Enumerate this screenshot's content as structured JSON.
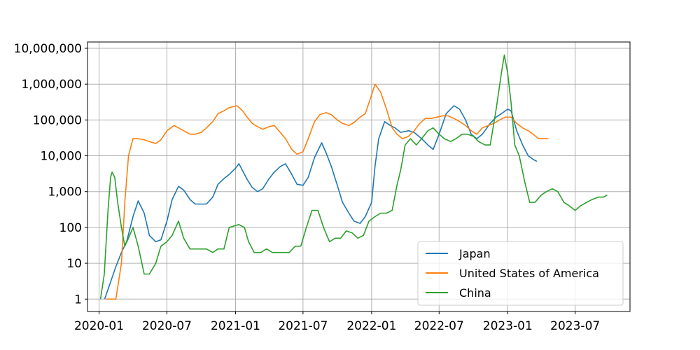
{
  "chart_data": {
    "type": "line",
    "title": "",
    "xlabel": "",
    "ylabel": "",
    "y_scale": "log",
    "ylim": [
      0.45,
      15000000
    ],
    "xlim": [
      "2019-12-01",
      "2023-11-25"
    ],
    "grid": true,
    "legend_position": "bottom-right",
    "x_ticks": [
      "2020-01",
      "2020-07",
      "2021-01",
      "2021-07",
      "2022-01",
      "2022-07",
      "2023-01",
      "2023-07"
    ],
    "y_ticks": [
      {
        "value": 1,
        "label": "1"
      },
      {
        "value": 10,
        "label": "10"
      },
      {
        "value": 100,
        "label": "100"
      },
      {
        "value": 1000,
        "label": "1,000"
      },
      {
        "value": 10000,
        "label": "10,000"
      },
      {
        "value": 100000,
        "label": "100,000"
      },
      {
        "value": 1000000,
        "label": "1,000,000"
      },
      {
        "value": 10000000,
        "label": "10,000,000"
      }
    ],
    "series": [
      {
        "name": "Japan",
        "color": "#1f77b4",
        "points": [
          [
            "2020-01-16",
            1
          ],
          [
            "2020-02-01",
            3
          ],
          [
            "2020-02-15",
            8
          ],
          [
            "2020-03-01",
            20
          ],
          [
            "2020-03-15",
            40
          ],
          [
            "2020-04-01",
            200
          ],
          [
            "2020-04-15",
            550
          ],
          [
            "2020-05-01",
            250
          ],
          [
            "2020-05-15",
            60
          ],
          [
            "2020-06-01",
            40
          ],
          [
            "2020-06-15",
            45
          ],
          [
            "2020-07-01",
            150
          ],
          [
            "2020-07-15",
            600
          ],
          [
            "2020-08-01",
            1400
          ],
          [
            "2020-08-15",
            1100
          ],
          [
            "2020-09-01",
            600
          ],
          [
            "2020-09-15",
            450
          ],
          [
            "2020-10-01",
            450
          ],
          [
            "2020-10-15",
            450
          ],
          [
            "2020-11-01",
            700
          ],
          [
            "2020-11-15",
            1600
          ],
          [
            "2020-12-01",
            2300
          ],
          [
            "2020-12-15",
            3000
          ],
          [
            "2021-01-01",
            4500
          ],
          [
            "2021-01-10",
            6000
          ],
          [
            "2021-02-01",
            2200
          ],
          [
            "2021-02-15",
            1300
          ],
          [
            "2021-03-01",
            1000
          ],
          [
            "2021-03-15",
            1200
          ],
          [
            "2021-04-01",
            2300
          ],
          [
            "2021-04-15",
            3500
          ],
          [
            "2021-05-01",
            5000
          ],
          [
            "2021-05-15",
            6000
          ],
          [
            "2021-06-01",
            3000
          ],
          [
            "2021-06-15",
            1600
          ],
          [
            "2021-07-01",
            1500
          ],
          [
            "2021-07-15",
            2500
          ],
          [
            "2021-08-01",
            9000
          ],
          [
            "2021-08-20",
            23000
          ],
          [
            "2021-09-01",
            12000
          ],
          [
            "2021-09-15",
            5000
          ],
          [
            "2021-10-01",
            1500
          ],
          [
            "2021-10-15",
            500
          ],
          [
            "2021-11-01",
            250
          ],
          [
            "2021-11-15",
            150
          ],
          [
            "2021-12-01",
            130
          ],
          [
            "2021-12-15",
            200
          ],
          [
            "2022-01-01",
            500
          ],
          [
            "2022-01-10",
            5000
          ],
          [
            "2022-01-20",
            30000
          ],
          [
            "2022-02-05",
            90000
          ],
          [
            "2022-02-20",
            70000
          ],
          [
            "2022-03-05",
            60000
          ],
          [
            "2022-03-20",
            45000
          ],
          [
            "2022-04-10",
            50000
          ],
          [
            "2022-04-25",
            45000
          ],
          [
            "2022-05-15",
            30000
          ],
          [
            "2022-06-01",
            20000
          ],
          [
            "2022-06-15",
            15000
          ],
          [
            "2022-07-01",
            40000
          ],
          [
            "2022-07-20",
            150000
          ],
          [
            "2022-08-10",
            250000
          ],
          [
            "2022-08-25",
            200000
          ],
          [
            "2022-09-10",
            100000
          ],
          [
            "2022-09-25",
            40000
          ],
          [
            "2022-10-10",
            30000
          ],
          [
            "2022-10-25",
            40000
          ],
          [
            "2022-11-15",
            80000
          ],
          [
            "2022-12-01",
            120000
          ],
          [
            "2022-12-15",
            150000
          ],
          [
            "2023-01-01",
            200000
          ],
          [
            "2023-01-10",
            180000
          ],
          [
            "2023-01-25",
            50000
          ],
          [
            "2023-02-10",
            20000
          ],
          [
            "2023-02-25",
            10000
          ],
          [
            "2023-03-10",
            8000
          ],
          [
            "2023-03-20",
            7000
          ]
        ]
      },
      {
        "name": "United States of America",
        "color": "#ff7f0e",
        "points": [
          [
            "2020-01-20",
            1
          ],
          [
            "2020-02-01",
            1
          ],
          [
            "2020-02-15",
            1
          ],
          [
            "2020-03-01",
            10
          ],
          [
            "2020-03-10",
            500
          ],
          [
            "2020-03-20",
            10000
          ],
          [
            "2020-04-01",
            30000
          ],
          [
            "2020-04-15",
            30000
          ],
          [
            "2020-05-01",
            28000
          ],
          [
            "2020-05-15",
            25000
          ],
          [
            "2020-06-01",
            22000
          ],
          [
            "2020-06-15",
            28000
          ],
          [
            "2020-07-01",
            50000
          ],
          [
            "2020-07-20",
            70000
          ],
          [
            "2020-08-01",
            60000
          ],
          [
            "2020-08-15",
            50000
          ],
          [
            "2020-09-01",
            40000
          ],
          [
            "2020-09-15",
            40000
          ],
          [
            "2020-10-01",
            45000
          ],
          [
            "2020-10-15",
            60000
          ],
          [
            "2020-11-01",
            90000
          ],
          [
            "2020-11-15",
            150000
          ],
          [
            "2020-12-01",
            180000
          ],
          [
            "2020-12-15",
            220000
          ],
          [
            "2021-01-05",
            250000
          ],
          [
            "2021-01-20",
            180000
          ],
          [
            "2021-02-01",
            120000
          ],
          [
            "2021-02-15",
            80000
          ],
          [
            "2021-03-01",
            65000
          ],
          [
            "2021-03-15",
            55000
          ],
          [
            "2021-04-01",
            65000
          ],
          [
            "2021-04-15",
            70000
          ],
          [
            "2021-05-01",
            45000
          ],
          [
            "2021-05-15",
            30000
          ],
          [
            "2021-06-01",
            15000
          ],
          [
            "2021-06-15",
            11000
          ],
          [
            "2021-07-01",
            13000
          ],
          [
            "2021-07-15",
            30000
          ],
          [
            "2021-08-01",
            90000
          ],
          [
            "2021-08-15",
            140000
          ],
          [
            "2021-09-01",
            160000
          ],
          [
            "2021-09-15",
            140000
          ],
          [
            "2021-10-01",
            100000
          ],
          [
            "2021-10-15",
            80000
          ],
          [
            "2021-11-01",
            70000
          ],
          [
            "2021-11-15",
            85000
          ],
          [
            "2021-12-01",
            120000
          ],
          [
            "2021-12-15",
            150000
          ],
          [
            "2022-01-01",
            500000
          ],
          [
            "2022-01-10",
            1000000
          ],
          [
            "2022-01-25",
            600000
          ],
          [
            "2022-02-10",
            200000
          ],
          [
            "2022-02-25",
            60000
          ],
          [
            "2022-03-10",
            40000
          ],
          [
            "2022-03-25",
            30000
          ],
          [
            "2022-04-10",
            35000
          ],
          [
            "2022-04-25",
            50000
          ],
          [
            "2022-05-10",
            80000
          ],
          [
            "2022-05-25",
            110000
          ],
          [
            "2022-06-10",
            110000
          ],
          [
            "2022-06-25",
            120000
          ],
          [
            "2022-07-10",
            130000
          ],
          [
            "2022-07-25",
            130000
          ],
          [
            "2022-08-10",
            110000
          ],
          [
            "2022-08-25",
            90000
          ],
          [
            "2022-09-10",
            70000
          ],
          [
            "2022-09-25",
            50000
          ],
          [
            "2022-10-10",
            40000
          ],
          [
            "2022-10-25",
            60000
          ],
          [
            "2022-11-10",
            70000
          ],
          [
            "2022-11-25",
            80000
          ],
          [
            "2022-12-10",
            100000
          ],
          [
            "2022-12-25",
            120000
          ],
          [
            "2023-01-10",
            120000
          ],
          [
            "2023-01-25",
            80000
          ],
          [
            "2023-02-10",
            60000
          ],
          [
            "2023-02-25",
            50000
          ],
          [
            "2023-03-10",
            40000
          ],
          [
            "2023-03-25",
            30000
          ],
          [
            "2023-04-10",
            30000
          ],
          [
            "2023-04-20",
            30000
          ]
        ]
      },
      {
        "name": "China",
        "color": "#2ca02c",
        "points": [
          [
            "2020-01-05",
            1
          ],
          [
            "2020-01-15",
            5
          ],
          [
            "2020-01-25",
            300
          ],
          [
            "2020-02-01",
            2500
          ],
          [
            "2020-02-05",
            3500
          ],
          [
            "2020-02-12",
            2500
          ],
          [
            "2020-02-20",
            500
          ],
          [
            "2020-03-01",
            100
          ],
          [
            "2020-03-10",
            30
          ],
          [
            "2020-03-20",
            50
          ],
          [
            "2020-04-01",
            100
          ],
          [
            "2020-04-15",
            30
          ],
          [
            "2020-05-01",
            5
          ],
          [
            "2020-05-15",
            5
          ],
          [
            "2020-06-01",
            10
          ],
          [
            "2020-06-15",
            30
          ],
          [
            "2020-07-01",
            40
          ],
          [
            "2020-07-15",
            60
          ],
          [
            "2020-08-01",
            150
          ],
          [
            "2020-08-15",
            50
          ],
          [
            "2020-09-01",
            25
          ],
          [
            "2020-09-15",
            25
          ],
          [
            "2020-10-01",
            25
          ],
          [
            "2020-10-15",
            25
          ],
          [
            "2020-11-01",
            20
          ],
          [
            "2020-11-15",
            25
          ],
          [
            "2020-12-01",
            25
          ],
          [
            "2020-12-15",
            100
          ],
          [
            "2021-01-10",
            120
          ],
          [
            "2021-01-25",
            100
          ],
          [
            "2021-02-05",
            40
          ],
          [
            "2021-02-20",
            20
          ],
          [
            "2021-03-10",
            20
          ],
          [
            "2021-03-25",
            25
          ],
          [
            "2021-04-10",
            20
          ],
          [
            "2021-04-25",
            20
          ],
          [
            "2021-05-10",
            20
          ],
          [
            "2021-05-25",
            20
          ],
          [
            "2021-06-10",
            30
          ],
          [
            "2021-06-25",
            30
          ],
          [
            "2021-07-10",
            100
          ],
          [
            "2021-07-25",
            300
          ],
          [
            "2021-08-10",
            300
          ],
          [
            "2021-08-25",
            100
          ],
          [
            "2021-09-10",
            40
          ],
          [
            "2021-09-25",
            50
          ],
          [
            "2021-10-10",
            50
          ],
          [
            "2021-10-25",
            80
          ],
          [
            "2021-11-10",
            70
          ],
          [
            "2021-11-25",
            50
          ],
          [
            "2021-12-10",
            60
          ],
          [
            "2021-12-25",
            150
          ],
          [
            "2022-01-10",
            200
          ],
          [
            "2022-01-25",
            250
          ],
          [
            "2022-02-10",
            250
          ],
          [
            "2022-02-25",
            300
          ],
          [
            "2022-03-10",
            1500
          ],
          [
            "2022-03-20",
            4000
          ],
          [
            "2022-04-01",
            20000
          ],
          [
            "2022-04-15",
            30000
          ],
          [
            "2022-05-01",
            20000
          ],
          [
            "2022-05-15",
            30000
          ],
          [
            "2022-06-01",
            50000
          ],
          [
            "2022-06-15",
            60000
          ],
          [
            "2022-07-01",
            40000
          ],
          [
            "2022-07-15",
            30000
          ],
          [
            "2022-08-01",
            25000
          ],
          [
            "2022-08-15",
            30000
          ],
          [
            "2022-09-01",
            40000
          ],
          [
            "2022-09-15",
            40000
          ],
          [
            "2022-10-01",
            35000
          ],
          [
            "2022-10-15",
            25000
          ],
          [
            "2022-11-01",
            20000
          ],
          [
            "2022-11-15",
            20000
          ],
          [
            "2022-12-01",
            200000
          ],
          [
            "2022-12-15",
            2000000
          ],
          [
            "2022-12-23",
            6500000
          ],
          [
            "2023-01-01",
            2000000
          ],
          [
            "2023-01-10",
            300000
          ],
          [
            "2023-01-20",
            20000
          ],
          [
            "2023-02-01",
            10000
          ],
          [
            "2023-02-15",
            2000
          ],
          [
            "2023-03-01",
            500
          ],
          [
            "2023-03-15",
            500
          ],
          [
            "2023-04-01",
            800
          ],
          [
            "2023-04-15",
            1000
          ],
          [
            "2023-05-01",
            1200
          ],
          [
            "2023-05-15",
            1000
          ],
          [
            "2023-06-01",
            500
          ],
          [
            "2023-06-15",
            400
          ],
          [
            "2023-07-01",
            300
          ],
          [
            "2023-07-15",
            400
          ],
          [
            "2023-08-01",
            500
          ],
          [
            "2023-08-15",
            600
          ],
          [
            "2023-09-01",
            700
          ],
          [
            "2023-09-15",
            700
          ],
          [
            "2023-09-25",
            800
          ]
        ]
      }
    ]
  }
}
